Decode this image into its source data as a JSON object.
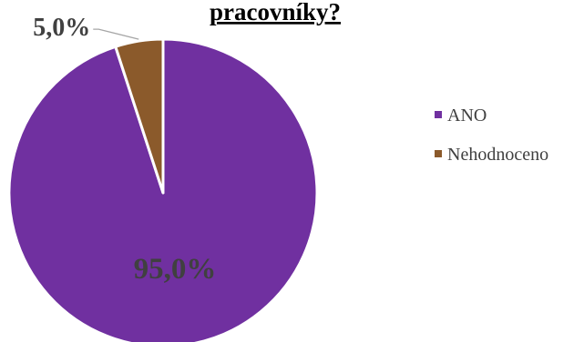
{
  "chart_data": {
    "type": "pie",
    "title": "pracovníky?",
    "categories": [
      "ANO",
      "Nehodnoceno"
    ],
    "values": [
      95.0,
      5.0
    ],
    "value_labels": [
      "95,0%",
      "5,0%"
    ],
    "colors": [
      "#7030a0",
      "#8b5a2b"
    ],
    "label_colors": [
      "#404040",
      "#404040"
    ],
    "legend_position": "right",
    "start_angle_deg": 0,
    "direction": "clockwise"
  }
}
